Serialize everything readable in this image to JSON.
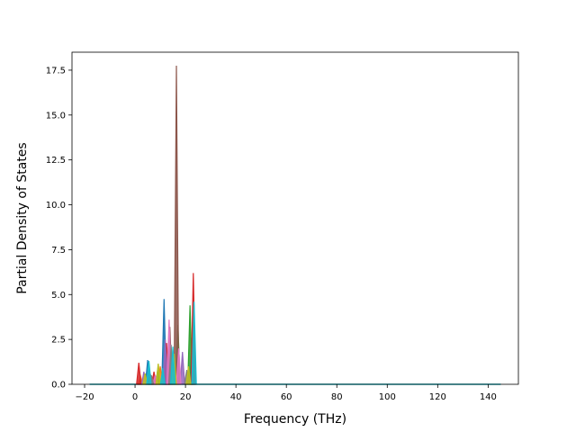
{
  "chart_data": {
    "type": "line",
    "title": "",
    "xlabel": "Frequency (THz)",
    "ylabel": "Partial Density of States",
    "xlim": [
      -25.0,
      152.0
    ],
    "ylim": [
      0.0,
      18.5
    ],
    "x_ticks": [
      -20,
      0,
      20,
      40,
      60,
      80,
      100,
      120,
      140
    ],
    "x_tick_labels": [
      "−20",
      "0",
      "20",
      "40",
      "60",
      "80",
      "100",
      "120",
      "140"
    ],
    "y_ticks": [
      0.0,
      2.5,
      5.0,
      7.5,
      10.0,
      12.5,
      15.0,
      17.5
    ],
    "y_tick_labels": [
      "0.0",
      "2.5",
      "5.0",
      "7.5",
      "10.0",
      "12.5",
      "15.0",
      "17.5"
    ],
    "grid": false,
    "legend": "none",
    "baseline": {
      "x": [
        -18,
        145
      ],
      "y": [
        0,
        0
      ],
      "color": "#17becf"
    },
    "series": [
      {
        "color": "#1f77b4",
        "peaks": [
          [
            11.5,
            4.75
          ],
          [
            5.0,
            1.35
          ],
          [
            22.6,
            2.6
          ]
        ]
      },
      {
        "color": "#ff7f0e",
        "peaks": [
          [
            2.2,
            0.45
          ],
          [
            10.0,
            1.0
          ],
          [
            22.9,
            1.2
          ],
          [
            14.5,
            1.4
          ]
        ]
      },
      {
        "color": "#2ca02c",
        "peaks": [
          [
            21.8,
            4.4
          ],
          [
            17.0,
            3.3
          ],
          [
            9.0,
            0.8
          ],
          [
            13.0,
            1.6
          ]
        ]
      },
      {
        "color": "#d62728",
        "peaks": [
          [
            23.1,
            6.2
          ],
          [
            1.5,
            1.2
          ],
          [
            12.5,
            2.3
          ],
          [
            7.5,
            0.7
          ]
        ]
      },
      {
        "color": "#9467bd",
        "peaks": [
          [
            12.0,
            2.5
          ],
          [
            3.5,
            0.7
          ],
          [
            18.8,
            1.8
          ]
        ]
      },
      {
        "color": "#8c564b",
        "peaks": [
          [
            16.4,
            17.75
          ],
          [
            13.8,
            3.2
          ],
          [
            6.0,
            0.6
          ]
        ]
      },
      {
        "color": "#e377c2",
        "peaks": [
          [
            13.5,
            3.6
          ],
          [
            17.3,
            2.0
          ],
          [
            8.0,
            0.5
          ]
        ]
      },
      {
        "color": "#7f7f7f",
        "peaks": [
          [
            14.3,
            2.2
          ],
          [
            6.5,
            0.5
          ],
          [
            20.5,
            0.8
          ]
        ]
      },
      {
        "color": "#bcbd22",
        "peaks": [
          [
            9.2,
            1.15
          ],
          [
            15.5,
            1.7
          ],
          [
            21.2,
            1.0
          ],
          [
            4.0,
            0.6
          ]
        ]
      },
      {
        "color": "#17becf",
        "peaks": [
          [
            23.4,
            4.6
          ],
          [
            5.5,
            1.3
          ],
          [
            15.0,
            2.1
          ],
          [
            11.0,
            0.9
          ]
        ]
      }
    ]
  }
}
